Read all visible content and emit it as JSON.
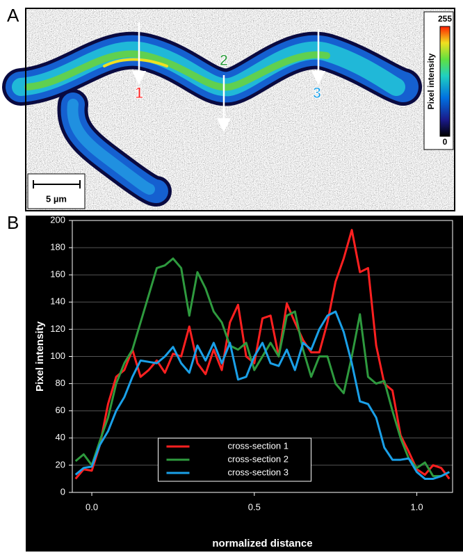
{
  "panel_a": {
    "label": "A",
    "arrow_labels": [
      "1",
      "2",
      "3"
    ],
    "scale_bar": "5 µm",
    "colorbar": {
      "title": "Pixel intensity",
      "max": "255",
      "min": "0"
    }
  },
  "panel_b": {
    "label": "B"
  },
  "chart_data": {
    "type": "line",
    "x_label": "normalized distance",
    "y_label": "Pixel intensity",
    "x": [
      -0.05,
      -0.025,
      0,
      0.025,
      0.05,
      0.075,
      0.1,
      0.125,
      0.15,
      0.175,
      0.2,
      0.225,
      0.25,
      0.275,
      0.3,
      0.325,
      0.35,
      0.375,
      0.4,
      0.425,
      0.45,
      0.475,
      0.5,
      0.525,
      0.55,
      0.575,
      0.6,
      0.625,
      0.65,
      0.675,
      0.7,
      0.725,
      0.75,
      0.775,
      0.8,
      0.825,
      0.85,
      0.875,
      0.9,
      0.925,
      0.95,
      0.975,
      1.0,
      1.025,
      1.05,
      1.075,
      1.1
    ],
    "series": [
      {
        "name": "cross-section 1",
        "color": "#ff2020",
        "values": [
          10,
          17,
          16,
          35,
          65,
          85,
          90,
          105,
          85,
          90,
          97,
          88,
          102,
          100,
          122,
          95,
          87,
          105,
          90,
          125,
          138,
          100,
          95,
          128,
          130,
          100,
          139,
          125,
          112,
          103,
          103,
          125,
          155,
          172,
          193,
          162,
          165,
          108,
          80,
          75,
          42,
          30,
          17,
          13,
          20,
          18,
          10
        ]
      },
      {
        "name": "cross-section 2",
        "color": "#2e9a3e",
        "values": [
          23,
          28,
          20,
          38,
          55,
          80,
          95,
          105,
          125,
          145,
          165,
          167,
          172,
          165,
          130,
          162,
          150,
          133,
          125,
          108,
          105,
          110,
          90,
          100,
          110,
          100,
          130,
          133,
          105,
          85,
          100,
          100,
          80,
          73,
          100,
          131,
          85,
          80,
          82,
          60,
          40,
          25,
          18,
          22,
          12,
          12,
          15
        ]
      },
      {
        "name": "cross-section 3",
        "color": "#1aa0e8",
        "values": [
          13,
          18,
          19,
          35,
          45,
          60,
          70,
          85,
          97,
          96,
          95,
          100,
          107,
          95,
          88,
          108,
          97,
          110,
          95,
          110,
          83,
          85,
          100,
          110,
          95,
          93,
          105,
          90,
          110,
          105,
          120,
          130,
          133,
          118,
          95,
          67,
          65,
          55,
          33,
          24,
          24,
          25,
          15,
          10,
          10,
          12,
          15
        ]
      }
    ],
    "xlim": [
      -0.06,
      1.11
    ],
    "ylim": [
      0,
      200
    ],
    "xticks": [
      {
        "value": 0,
        "label": "0.0"
      },
      0.5,
      {
        "value": 1,
        "label": "1.0"
      }
    ],
    "yticks": [
      0,
      20,
      40,
      60,
      80,
      100,
      120,
      140,
      160,
      180,
      200
    ],
    "grid": true,
    "legend": "lower center"
  }
}
